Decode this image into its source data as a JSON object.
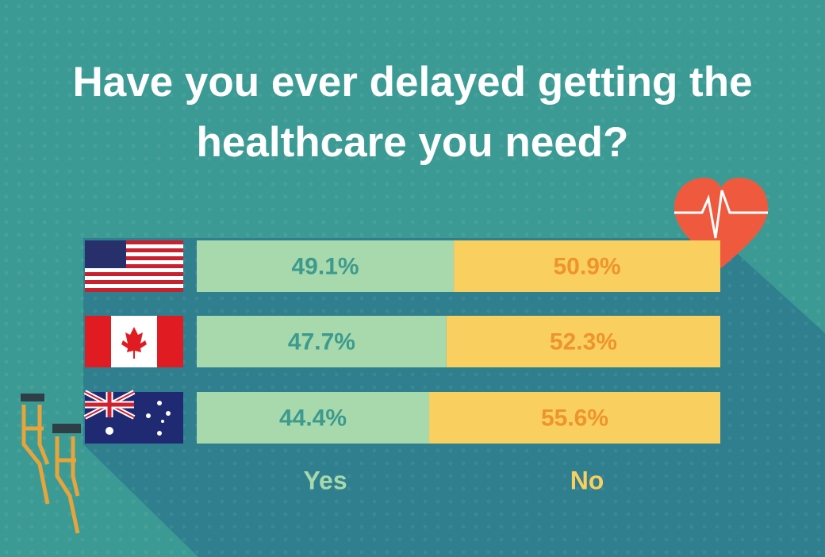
{
  "chart_data": {
    "type": "stacked_bar_horizontal",
    "title": "Have you ever delayed getting the healthcare you need?",
    "categories": [
      null,
      null,
      null
    ],
    "series": [
      {
        "name": "Yes",
        "color": "#a7d9ac",
        "label_color": "#3d9a8e",
        "values": [
          49.1,
          47.7,
          44.4
        ],
        "value_labels": [
          "49.1%",
          "47.7%",
          "44.4%"
        ]
      },
      {
        "name": "No",
        "color": "#f9cf60",
        "label_color": "#ee942b",
        "values": [
          50.9,
          52.3,
          55.6
        ],
        "value_labels": [
          "50.9%",
          "52.3%",
          "55.6%"
        ]
      }
    ]
  }
}
